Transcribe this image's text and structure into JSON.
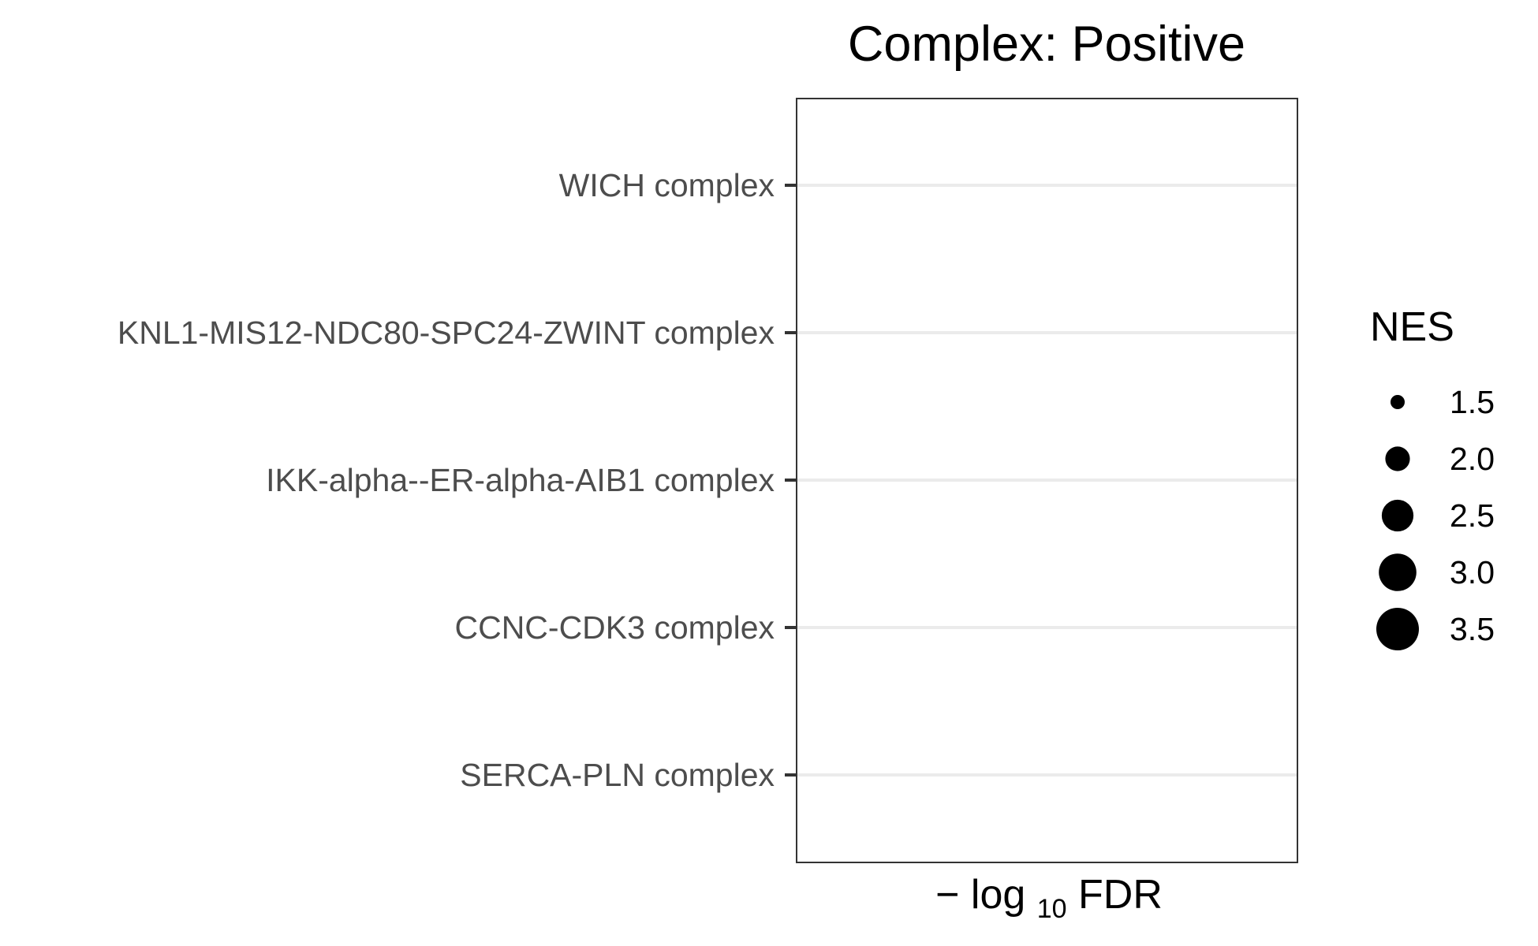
{
  "chart_data": {
    "type": "scatter",
    "title": "Complex: Positive",
    "xlabel": {
      "prefix": "− log",
      "subscript": "10",
      "suffix": "FDR"
    },
    "ylabel": "",
    "categories": [
      "WICH complex",
      "KNL1-MIS12-NDC80-SPC24-ZWINT complex",
      "IKK-alpha--ER-alpha-AIB1 complex",
      "CCNC-CDK3 complex",
      "SERCA-PLN complex"
    ],
    "points": [],
    "grid": "horizontal major gridlines",
    "legend": {
      "title": "NES",
      "position": "right",
      "size_breaks": [
        1.5,
        2.0,
        2.5,
        3.0,
        3.5
      ],
      "labels": [
        "1.5",
        "2.0",
        "2.5",
        "3.0",
        "3.5"
      ]
    },
    "colors": {
      "panel_border": "#333333",
      "gridline": "#ebebeb",
      "tick_text": "#4d4d4d",
      "point": "#000000"
    }
  }
}
